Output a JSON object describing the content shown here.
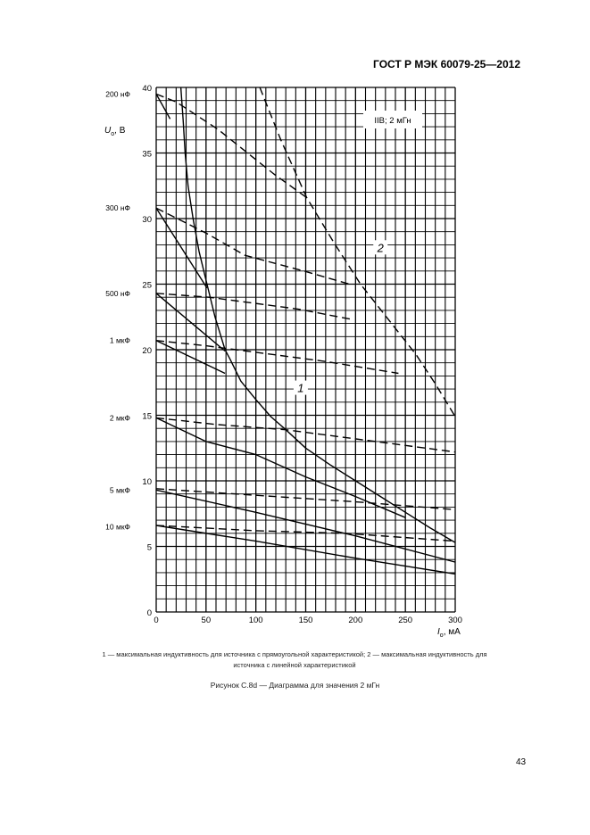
{
  "header": {
    "standard": "ГОСТ Р МЭК 60079-25—2012"
  },
  "legend": {
    "line1": "1 — максимальная индуктивность для источника с прямоугольной характеристикой; 2 — максимальная индуктивность для",
    "line2": "источника с линейной характеристикой"
  },
  "figure_caption": "Рисунок С.8d — Диаграмма для значения 2 мГн",
  "page_number": "43",
  "chart_data": {
    "type": "line",
    "title": "IIB; 2 мГн",
    "xlabel": "I",
    "xlabel_sub": "o",
    "xlabel_unit": ", мА",
    "ylabel": "U",
    "ylabel_sub": "o",
    "ylabel_unit": ", В",
    "xlim": [
      0,
      300
    ],
    "ylim": [
      0,
      40
    ],
    "xticks": [
      "0",
      "50",
      "100",
      "150",
      "200",
      "250",
      "300"
    ],
    "yticks": [
      "0",
      "5",
      "10",
      "15",
      "20",
      "25",
      "30",
      "35",
      "40"
    ],
    "grid": {
      "x_step": 10,
      "y_step": 1
    },
    "curve_labels": [
      {
        "text": "1",
        "x": 145,
        "y": 16.9
      },
      {
        "text": "2",
        "x": 225,
        "y": 27.6
      }
    ],
    "capacitance_labels": [
      {
        "text": "200 нФ",
        "y": 39.5
      },
      {
        "text": "300 нФ",
        "y": 30.8
      },
      {
        "text": "500 нФ",
        "y": 24.3
      },
      {
        "text": "1 мкФ",
        "y": 20.7
      },
      {
        "text": "2 мкФ",
        "y": 14.8
      },
      {
        "text": "5 мкФ",
        "y": 9.3
      },
      {
        "text": "10 мкФ",
        "y": 6.5
      }
    ],
    "series": [
      {
        "name": "1",
        "style": "solid",
        "points": [
          [
            24.7,
            40
          ],
          [
            27,
            37.5
          ],
          [
            29,
            35
          ],
          [
            32,
            32.5
          ],
          [
            37,
            30
          ],
          [
            43,
            27.5
          ],
          [
            51,
            25
          ],
          [
            59,
            22.5
          ],
          [
            69,
            20
          ],
          [
            74,
            19.3
          ],
          [
            85,
            17.6
          ],
          [
            100,
            16.2
          ],
          [
            115,
            14.9
          ],
          [
            130,
            13.9
          ],
          [
            150,
            12.5
          ],
          [
            175,
            11.2
          ],
          [
            200,
            10
          ],
          [
            225,
            8.8
          ],
          [
            250,
            7.6
          ],
          [
            275,
            6.4
          ],
          [
            300,
            5.3
          ]
        ]
      },
      {
        "name": "2",
        "style": "dashed",
        "points": [
          [
            104,
            40
          ],
          [
            125,
            36
          ],
          [
            151,
            31.6
          ],
          [
            178,
            28.2
          ],
          [
            205,
            25
          ],
          [
            233,
            22.3
          ],
          [
            261,
            19.6
          ],
          [
            280,
            17.4
          ],
          [
            300,
            14.9
          ]
        ]
      },
      {
        "style": "solid",
        "points": [
          [
            0,
            39.5
          ],
          [
            14,
            37.6
          ]
        ]
      },
      {
        "style": "solid",
        "points": [
          [
            0,
            30.8
          ],
          [
            51,
            24.7
          ]
        ]
      },
      {
        "style": "solid",
        "points": [
          [
            0,
            24.3
          ],
          [
            69,
            19.9
          ]
        ]
      },
      {
        "style": "solid",
        "points": [
          [
            0,
            20.7
          ],
          [
            69,
            18.2
          ]
        ]
      },
      {
        "style": "solid",
        "points": [
          [
            0,
            14.8
          ],
          [
            50,
            13
          ],
          [
            100,
            12
          ],
          [
            150,
            10.3
          ],
          [
            200,
            8.8
          ],
          [
            250,
            7.2
          ]
        ]
      },
      {
        "style": "solid",
        "points": [
          [
            0,
            9.3
          ],
          [
            100,
            7.6
          ],
          [
            200,
            5.8
          ],
          [
            300,
            3.8
          ]
        ]
      },
      {
        "style": "solid",
        "points": [
          [
            0,
            6.6
          ],
          [
            100,
            5.4
          ],
          [
            200,
            4.1
          ],
          [
            300,
            2.9
          ]
        ]
      },
      {
        "style": "dashed",
        "points": [
          [
            0,
            39.5
          ],
          [
            20,
            38.9
          ],
          [
            62,
            36.8
          ],
          [
            118,
            33.4
          ],
          [
            151,
            31.6
          ]
        ]
      },
      {
        "style": "dashed",
        "points": [
          [
            0,
            30.8
          ],
          [
            50,
            28.9
          ],
          [
            89,
            27.2
          ],
          [
            148,
            26
          ],
          [
            194,
            25
          ]
        ]
      },
      {
        "style": "dashed",
        "points": [
          [
            0,
            24.3
          ],
          [
            53,
            24
          ],
          [
            142,
            23.1
          ],
          [
            197,
            22.3
          ]
        ]
      },
      {
        "style": "dashed",
        "points": [
          [
            0,
            20.7
          ],
          [
            50,
            20.3
          ],
          [
            100,
            19.8
          ],
          [
            170,
            19.1
          ],
          [
            243,
            18.2
          ]
        ]
      },
      {
        "style": "dashed",
        "points": [
          [
            0,
            14.8
          ],
          [
            60,
            14.3
          ],
          [
            130,
            13.9
          ],
          [
            220,
            13
          ],
          [
            300,
            12.2
          ]
        ]
      },
      {
        "style": "dashed",
        "points": [
          [
            0,
            9.4
          ],
          [
            100,
            8.9
          ],
          [
            200,
            8.4
          ],
          [
            300,
            7.8
          ]
        ]
      },
      {
        "style": "dashed",
        "points": [
          [
            0,
            6.6
          ],
          [
            100,
            6.2
          ],
          [
            190,
            6
          ],
          [
            300,
            5.4
          ]
        ]
      }
    ]
  }
}
